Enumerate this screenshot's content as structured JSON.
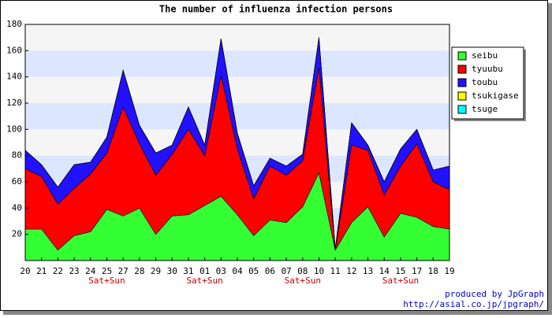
{
  "chart_data": {
    "type": "stacked_area",
    "title": "The number of influenza infection persons",
    "categories": [
      "20",
      "21",
      "22",
      "23",
      "24",
      "25",
      "27",
      "28",
      "29",
      "30",
      "31",
      "01",
      "03",
      "04",
      "05",
      "06",
      "07",
      "08",
      "10",
      "11",
      "12",
      "13",
      "14",
      "15",
      "17",
      "18",
      "19"
    ],
    "x_sublabels": [
      null,
      null,
      null,
      null,
      null,
      "Sat+Sun",
      null,
      null,
      null,
      null,
      null,
      "Sat+Sun",
      null,
      null,
      null,
      null,
      null,
      "Sat+Sun",
      null,
      null,
      null,
      null,
      null,
      "Sat+Sun",
      null,
      null,
      null
    ],
    "series": [
      {
        "name": "seibu",
        "color": "#33ff33",
        "values": [
          24,
          24,
          8,
          19,
          22,
          39,
          34,
          40,
          20,
          34,
          35,
          42,
          49,
          35,
          19,
          31,
          29,
          41,
          67,
          8,
          29,
          41,
          18,
          36,
          33,
          26,
          24
        ]
      },
      {
        "name": "tyuubu",
        "color": "#ff0000",
        "values": [
          46,
          40,
          35,
          36,
          44,
          43,
          83,
          49,
          45,
          47,
          65,
          38,
          92,
          50,
          28,
          41,
          36,
          35,
          80,
          0,
          59,
          43,
          32,
          36,
          56,
          34,
          30
        ]
      },
      {
        "name": "toubu",
        "color": "#2211ff",
        "values": [
          14,
          9,
          13,
          18,
          9,
          12,
          28,
          14,
          17,
          7,
          17,
          8,
          28,
          12,
          10,
          6,
          7,
          5,
          23,
          1,
          17,
          4,
          10,
          13,
          11,
          9,
          18
        ]
      },
      {
        "name": "tsukigase",
        "color": "#ffff00",
        "values": [
          0,
          0,
          0,
          0,
          0,
          0,
          0,
          0,
          0,
          0,
          0,
          0,
          0,
          0,
          0,
          0,
          0,
          0,
          0,
          0,
          0,
          0,
          0,
          0,
          0,
          0,
          0
        ]
      },
      {
        "name": "tsuge",
        "color": "#00ffff",
        "values": [
          0,
          0,
          0,
          0,
          0,
          0,
          0,
          0,
          0,
          0,
          0,
          0,
          0,
          0,
          0,
          0,
          0,
          0,
          0,
          0,
          0,
          0,
          0,
          0,
          0,
          0,
          0
        ]
      }
    ],
    "ylim": [
      0,
      180
    ],
    "yticks": [
      20,
      40,
      60,
      80,
      100,
      120,
      140,
      160,
      180
    ],
    "grid": true,
    "band_colors": [
      "#f5f5f5",
      "#dde6ff"
    ],
    "legend": "upper right",
    "credits": [
      "produced by JpGraph",
      "http://asial.co.jp/jpgraph/"
    ]
  }
}
